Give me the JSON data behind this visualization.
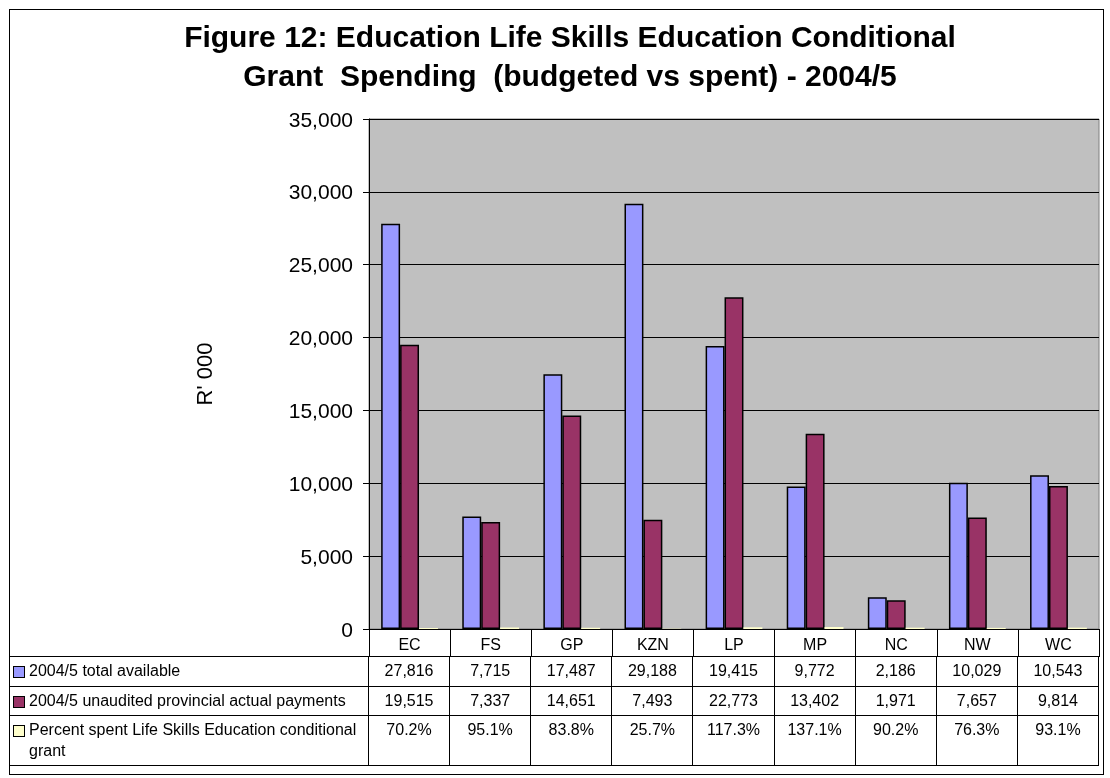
{
  "chart_data": {
    "type": "bar",
    "title": "Figure 12: Education Life Skills Education Conditional Grant  Spending  (budgeted vs spent) - 2004/5",
    "ylabel": "R' 000",
    "categories": [
      "EC",
      "FS",
      "GP",
      "KZN",
      "LP",
      "MP",
      "NC",
      "NW",
      "WC"
    ],
    "series": [
      {
        "name": "2004/5 total available",
        "color": "#9999ff",
        "values": [
          27816,
          7715,
          17487,
          29188,
          19415,
          9772,
          2186,
          10029,
          10543
        ],
        "value_labels": [
          "27,816",
          "7,715",
          "17,487",
          "29,188",
          "19,415",
          "9,772",
          "2,186",
          "10,029",
          "10,543"
        ]
      },
      {
        "name": "2004/5 unaudited provincial actual payments",
        "color": "#993366",
        "values": [
          19515,
          7337,
          14651,
          7493,
          22773,
          13402,
          1971,
          7657,
          9814
        ],
        "value_labels": [
          "19,515",
          "7,337",
          "14,651",
          "7,493",
          "22,773",
          "13,402",
          "1,971",
          "7,657",
          "9,814"
        ]
      },
      {
        "name": "Percent spent Life Skills Education conditional grant",
        "color": "#ffffcc",
        "values": [
          70.2,
          95.1,
          83.8,
          25.7,
          117.3,
          137.1,
          90.2,
          76.3,
          93.1
        ],
        "value_labels": [
          "70.2%",
          "95.1%",
          "83.8%",
          "25.7%",
          "117.3%",
          "137.1%",
          "90.2%",
          "76.3%",
          "93.1%"
        ]
      }
    ],
    "ylim": [
      0,
      35000
    ],
    "yticks": [
      0,
      {
        "value": 5000,
        "label": "5,000"
      },
      {
        "value": 10000,
        "label": "10,000"
      },
      {
        "value": 15000,
        "label": "15,000"
      },
      {
        "value": 20000,
        "label": "20,000"
      },
      {
        "value": 25000,
        "label": "25,000"
      },
      {
        "value": 30000,
        "label": "30,000"
      },
      {
        "value": 35000,
        "label": "35,000"
      }
    ],
    "grid": "y",
    "legend": "bottom"
  }
}
